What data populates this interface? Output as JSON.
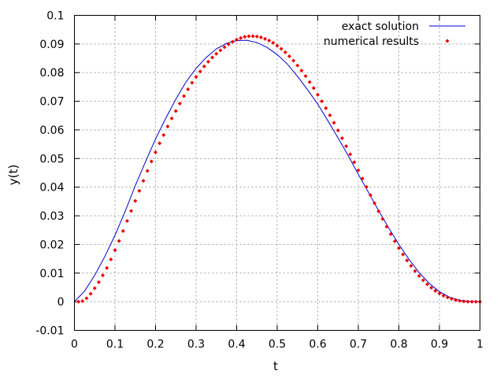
{
  "chart_data": {
    "type": "line",
    "title": "",
    "xlabel": "t",
    "ylabel": "y(t)",
    "xlim": [
      0,
      1
    ],
    "ylim": [
      -0.01,
      0.1
    ],
    "xticks": [
      "0",
      "0.1",
      "0.2",
      "0.3",
      "0.4",
      "0.5",
      "0.6",
      "0.7",
      "0.8",
      "0.9",
      "1"
    ],
    "yticks": [
      "-0.01",
      "0",
      "0.01",
      "0.02",
      "0.03",
      "0.04",
      "0.05",
      "0.06",
      "0.07",
      "0.08",
      "0.09",
      "0.1"
    ],
    "grid": true,
    "legend_position": "top-right",
    "series": [
      {
        "name": "exact solution",
        "style": "line",
        "color": "#0000cc",
        "x": [
          0,
          0.025,
          0.05,
          0.075,
          0.1,
          0.125,
          0.15,
          0.175,
          0.2,
          0.225,
          0.25,
          0.275,
          0.3,
          0.325,
          0.35,
          0.375,
          0.4,
          0.425,
          0.45,
          0.475,
          0.5,
          0.525,
          0.55,
          0.575,
          0.6,
          0.625,
          0.65,
          0.675,
          0.7,
          0.725,
          0.75,
          0.775,
          0.8,
          0.825,
          0.85,
          0.875,
          0.9,
          0.925,
          0.95,
          0.975,
          1
        ],
        "y": [
          0,
          0.0037,
          0.0092,
          0.0158,
          0.0232,
          0.0315,
          0.0405,
          0.0488,
          0.0568,
          0.064,
          0.0707,
          0.0767,
          0.0815,
          0.0853,
          0.0883,
          0.0902,
          0.0912,
          0.0913,
          0.0905,
          0.0888,
          0.0863,
          0.083,
          0.0787,
          0.074,
          0.069,
          0.0632,
          0.0572,
          0.051,
          0.0445,
          0.0382,
          0.0318,
          0.0258,
          0.02,
          0.0148,
          0.0102,
          0.0064,
          0.0035,
          0.0016,
          0.0005,
          0.0001,
          0
        ]
      },
      {
        "name": "numerical results",
        "style": "points",
        "color": "#ee0000",
        "x": [
          0.01,
          0.02,
          0.03,
          0.04,
          0.05,
          0.06,
          0.07,
          0.08,
          0.09,
          0.1,
          0.11,
          0.12,
          0.13,
          0.14,
          0.15,
          0.16,
          0.17,
          0.18,
          0.19,
          0.2,
          0.21,
          0.22,
          0.23,
          0.24,
          0.25,
          0.26,
          0.27,
          0.28,
          0.29,
          0.3,
          0.31,
          0.32,
          0.33,
          0.34,
          0.35,
          0.36,
          0.37,
          0.38,
          0.39,
          0.4,
          0.41,
          0.42,
          0.43,
          0.44,
          0.45,
          0.46,
          0.47,
          0.48,
          0.49,
          0.5,
          0.51,
          0.52,
          0.53,
          0.54,
          0.55,
          0.56,
          0.57,
          0.58,
          0.59,
          0.6,
          0.61,
          0.62,
          0.63,
          0.64,
          0.65,
          0.66,
          0.67,
          0.68,
          0.69,
          0.7,
          0.71,
          0.72,
          0.73,
          0.74,
          0.75,
          0.76,
          0.77,
          0.78,
          0.79,
          0.8,
          0.81,
          0.82,
          0.83,
          0.84,
          0.85,
          0.86,
          0.87,
          0.88,
          0.89,
          0.9,
          0.91,
          0.92,
          0.93,
          0.94,
          0.95,
          0.96,
          0.97,
          0.98,
          0.99,
          1.0
        ],
        "y": [
          0,
          0.0002,
          0.0012,
          0.0028,
          0.0047,
          0.0068,
          0.0092,
          0.0118,
          0.0148,
          0.018,
          0.0212,
          0.0247,
          0.0282,
          0.0317,
          0.0352,
          0.0387,
          0.0422,
          0.0457,
          0.049,
          0.0522,
          0.0553,
          0.0582,
          0.0612,
          0.064,
          0.0666,
          0.0692,
          0.0718,
          0.0742,
          0.0765,
          0.0785,
          0.0804,
          0.0822,
          0.0838,
          0.0853,
          0.0866,
          0.0878,
          0.0889,
          0.0899,
          0.0908,
          0.0915,
          0.0921,
          0.0925,
          0.0927,
          0.0927,
          0.0926,
          0.0923,
          0.0918,
          0.0912,
          0.0904,
          0.0894,
          0.0883,
          0.0871,
          0.0857,
          0.0842,
          0.0825,
          0.0807,
          0.0788,
          0.0767,
          0.0746,
          0.0723,
          0.07,
          0.0676,
          0.0651,
          0.0625,
          0.0598,
          0.0571,
          0.0543,
          0.0515,
          0.0487,
          0.0459,
          0.043,
          0.0401,
          0.0372,
          0.0344,
          0.0316,
          0.0289,
          0.0262,
          0.0236,
          0.0211,
          0.0187,
          0.0165,
          0.0144,
          0.0125,
          0.0107,
          0.009,
          0.0075,
          0.0061,
          0.0049,
          0.0038,
          0.0029,
          0.0021,
          0.0015,
          0.001,
          0.0006,
          0.0003,
          0.0001,
          0,
          0,
          0,
          0
        ]
      }
    ]
  }
}
